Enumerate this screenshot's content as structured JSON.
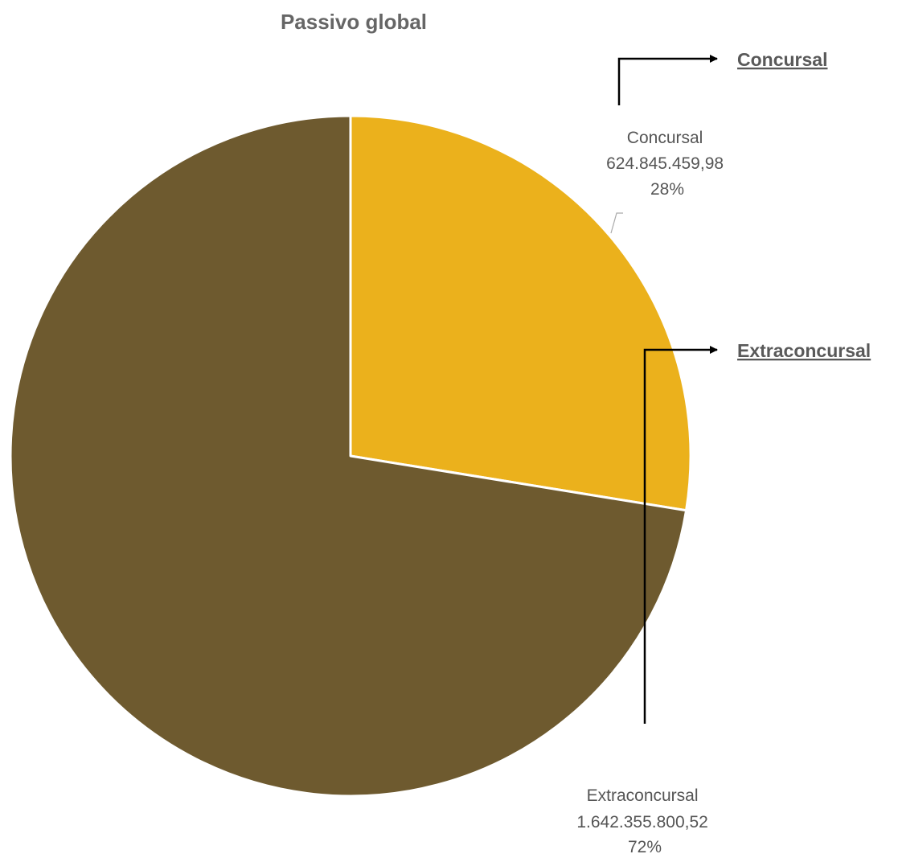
{
  "chart_data": {
    "type": "pie",
    "title": "Passivo global",
    "slices": [
      {
        "label": "Concursal",
        "value": 624845459.98,
        "value_text": "624.845.459,98",
        "percent_text": "28%",
        "color": "#ebb11c"
      },
      {
        "label": "Extraconcursal",
        "value": 1642355800.52,
        "value_text": "1.642.355.800,52",
        "percent_text": "72%",
        "color": "#6e5a2f"
      }
    ],
    "annotations": [
      {
        "text": "Concursal"
      },
      {
        "text": "Extraconcursal"
      }
    ]
  },
  "colors": {
    "slice_border": "#ffffff",
    "title": "#666666",
    "label": "#555555",
    "leader": "#aaaaaa",
    "arrow": "#000000"
  }
}
